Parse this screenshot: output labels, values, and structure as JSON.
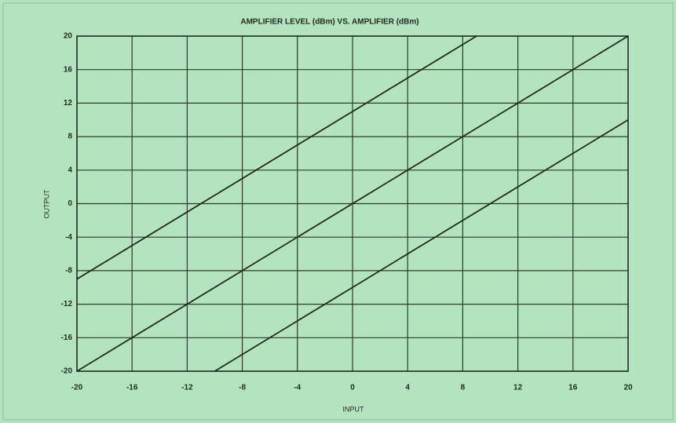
{
  "chart_data": {
    "type": "line",
    "title": "AMPLIFIER LEVEL (dBm) VS. AMPLIFIER (dBm)",
    "x_label": "INPUT",
    "y_label": "OUTPUT",
    "series": [
      {
        "color": "#1e2a22",
        "x": [
          -20,
          9
        ],
        "values": [
          -9,
          20
        ]
      },
      {
        "color": "#1e2a22",
        "x": [
          -20,
          20
        ],
        "values": [
          -20,
          20
        ]
      },
      {
        "color": "#1e2a22",
        "x": [
          -10,
          20
        ],
        "values": [
          -20,
          10
        ]
      }
    ],
    "xlim": [
      -20,
      20
    ],
    "xticks": [
      -20,
      -16,
      -12,
      -8,
      -4,
      0,
      4,
      8,
      12,
      16,
      20
    ],
    "ylim": [
      -20,
      20
    ],
    "yticks": [
      -20,
      -16,
      -12,
      -8,
      -4,
      0,
      4,
      8,
      12,
      16,
      20
    ],
    "grid": true
  }
}
